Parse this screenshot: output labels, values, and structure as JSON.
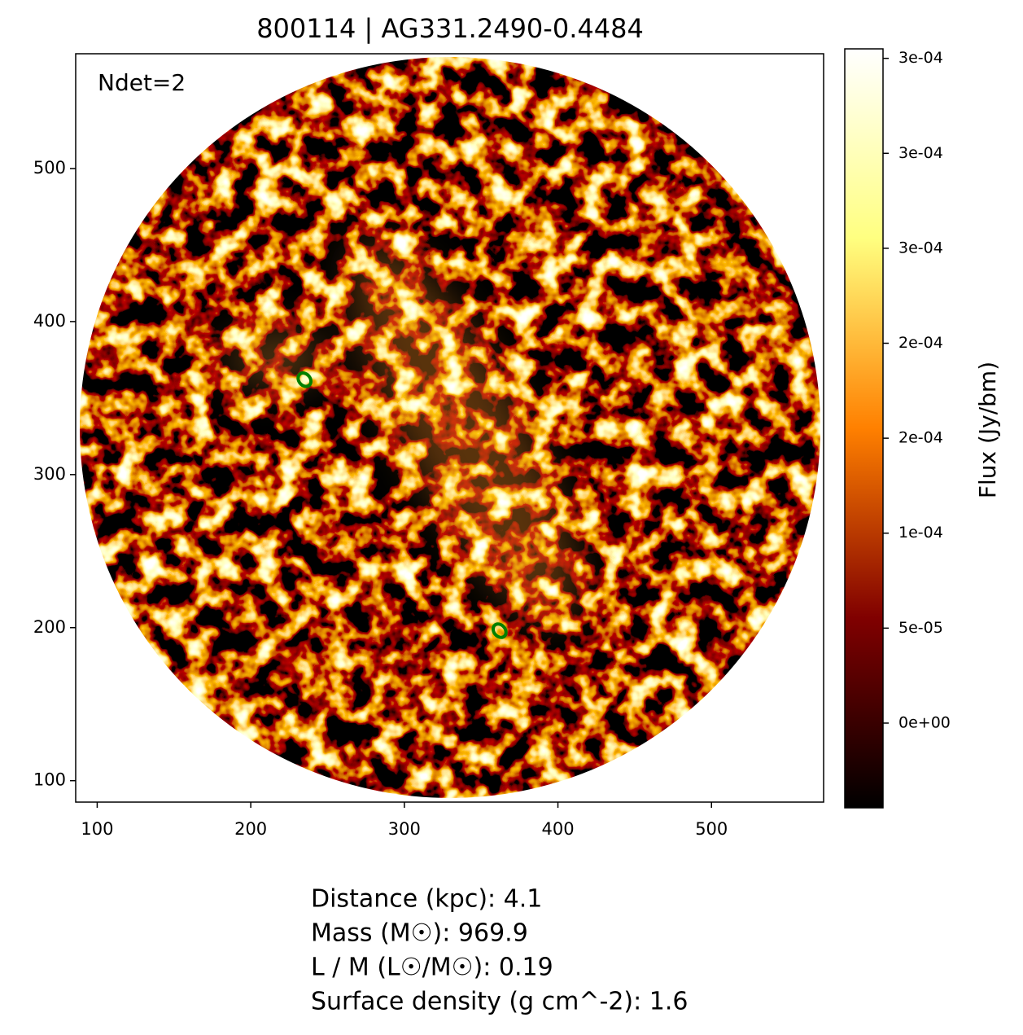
{
  "chart_data": {
    "type": "image",
    "title": "800114 | AG331.2490-0.4484",
    "annotation": "Ndet=2",
    "xlim": [
      86,
      573
    ],
    "ylim": [
      86,
      575
    ],
    "xticks": [
      100,
      200,
      300,
      400,
      500
    ],
    "yticks": [
      100,
      200,
      300,
      400,
      500
    ],
    "sources": [
      {
        "x": 235,
        "y": 362,
        "color": "#008000"
      },
      {
        "x": 362,
        "y": 198,
        "color": "#008000"
      }
    ],
    "colorbar": {
      "label": "Flux (Jy/bm)",
      "colormap": "afmhot",
      "lim": [
        -4.46e-05,
        0.000355
      ],
      "ticks": [
        {
          "value": 0,
          "label": "0e+00"
        },
        {
          "value": 5e-05,
          "label": "5e-05"
        },
        {
          "value": 0.0001,
          "label": "1e-04"
        },
        {
          "value": 0.00015,
          "label": "2e-04"
        },
        {
          "value": 0.0002,
          "label": "2e-04"
        },
        {
          "value": 0.00025,
          "label": "3e-04"
        },
        {
          "value": 0.0003,
          "label": "3e-04"
        },
        {
          "value": 0.00035,
          "label": "3e-04"
        }
      ]
    },
    "info": [
      "Distance (kpc): 4.1",
      "Mass (M☉): 969.9",
      "L / M (L☉/M☉): 0.19",
      "Surface density (g cm^-2): 1.6"
    ]
  }
}
